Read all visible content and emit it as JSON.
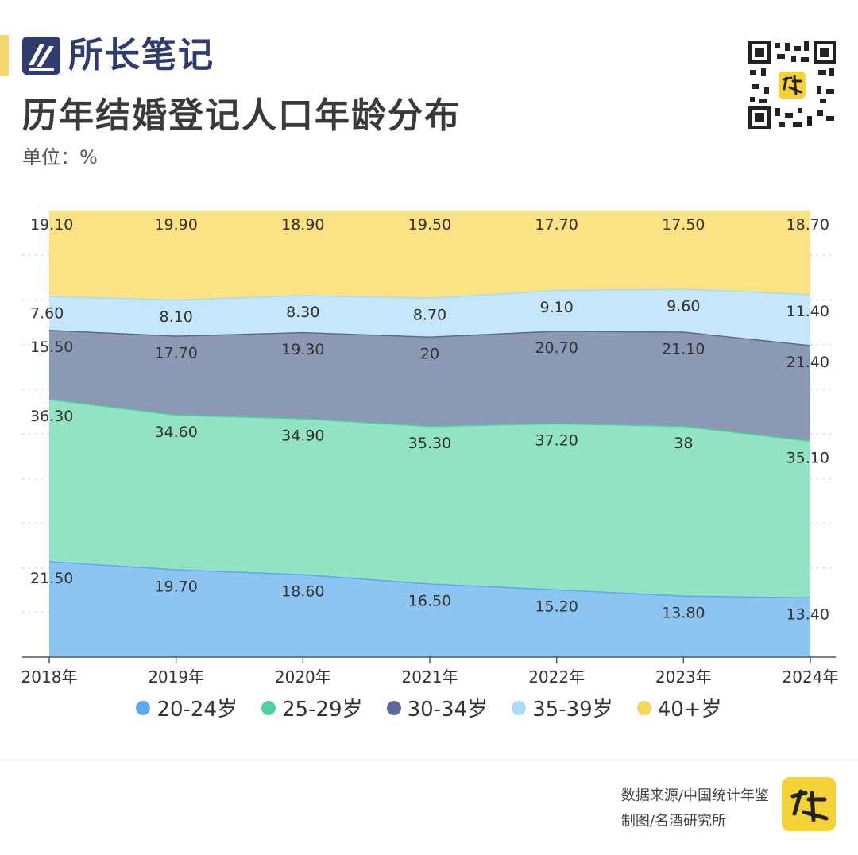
{
  "header": {
    "brand": "所长笔记",
    "title": "历年结婚登记人口年龄分布",
    "unit": "单位：%"
  },
  "footer": {
    "source": "数据来源/中国统计年鉴",
    "credit": "制图/名酒研究所"
  },
  "chart_data": {
    "type": "area",
    "stacked": true,
    "categories": [
      "2018年",
      "2019年",
      "2020年",
      "2021年",
      "2022年",
      "2023年",
      "2024年"
    ],
    "ylim": [
      0,
      100
    ],
    "grid": true,
    "legend_position": "bottom",
    "series": [
      {
        "name": "20-24岁",
        "values": [
          21.5,
          19.7,
          18.6,
          16.5,
          15.2,
          13.8,
          13.4
        ],
        "labels": [
          "21.50",
          "19.70",
          "18.60",
          "16.50",
          "15.20",
          "13.80",
          "13.40"
        ],
        "fill": "#8cc4f2",
        "line": "#5aaaf0",
        "dot": "#5aaaf0"
      },
      {
        "name": "25-29岁",
        "values": [
          36.3,
          34.6,
          34.9,
          35.3,
          37.2,
          38,
          35.1
        ],
        "labels": [
          "36.30",
          "34.60",
          "34.90",
          "35.30",
          "37.20",
          "38",
          "35.10"
        ],
        "fill": "#92e3c4",
        "line": "#4ed19f",
        "dot": "#4ed19f"
      },
      {
        "name": "30-34岁",
        "values": [
          15.5,
          17.7,
          19.3,
          20,
          20.7,
          21.1,
          21.4
        ],
        "labels": [
          "15.50",
          "17.70",
          "19.30",
          "20",
          "20.70",
          "21.10",
          "21.40"
        ],
        "fill": "#8c99b4",
        "line": "#5b6a93",
        "dot": "#5b6a93"
      },
      {
        "name": "35-39岁",
        "values": [
          7.6,
          8.1,
          8.3,
          8.7,
          9.1,
          9.6,
          11.4
        ],
        "labels": [
          "7.60",
          "8.10",
          "8.30",
          "8.70",
          "9.10",
          "9.60",
          "11.40"
        ],
        "fill": "#c6e7fb",
        "line": "#a9dbf8",
        "dot": "#a9dbf8"
      },
      {
        "name": "40+岁",
        "values": [
          19.1,
          19.9,
          18.9,
          19.5,
          17.7,
          17.5,
          18.7
        ],
        "labels": [
          "19.10",
          "19.90",
          "18.90",
          "19.50",
          "17.70",
          "17.50",
          "18.70"
        ],
        "fill": "#fbe285",
        "line": "#f7d65a",
        "dot": "#f7d65a"
      }
    ]
  }
}
